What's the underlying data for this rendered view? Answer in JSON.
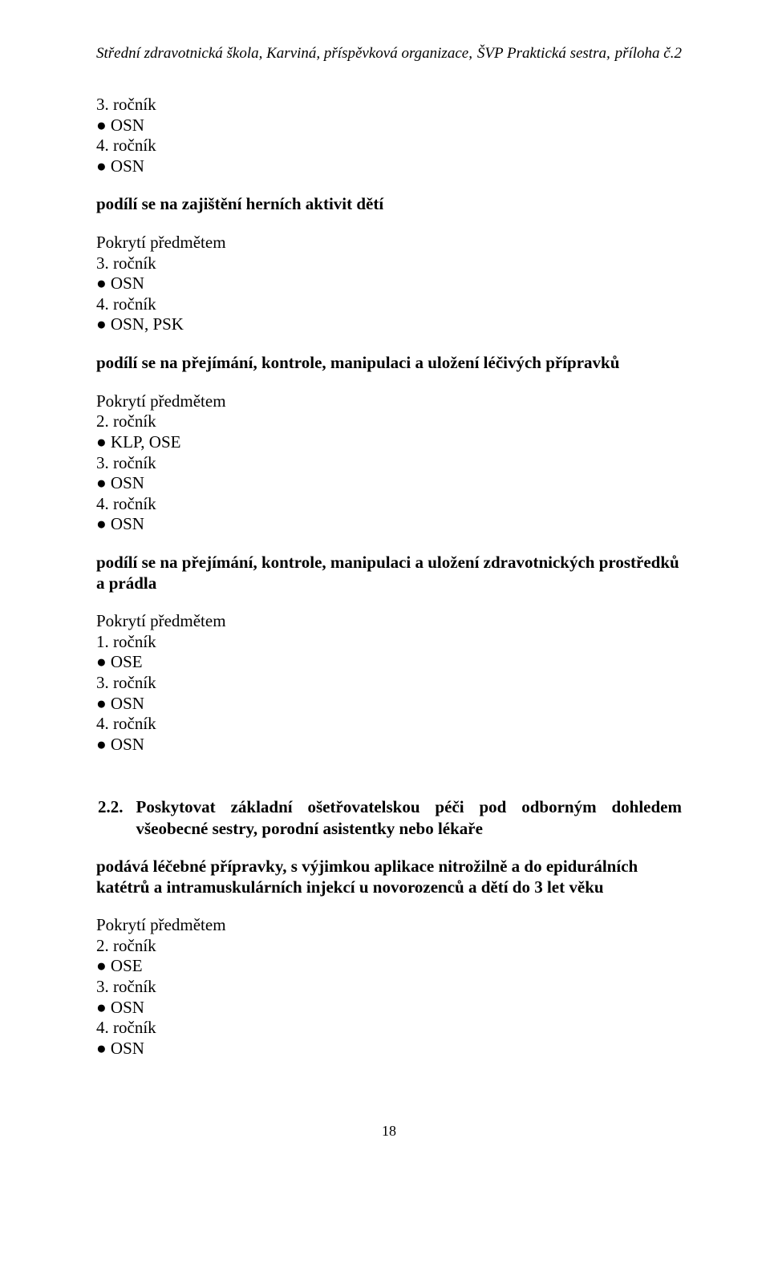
{
  "header": {
    "left": "Střední zdravotnická škola, Karviná, příspěvková organizace,",
    "center": "ŠVP Praktická sestra,",
    "right": "příloha č.2"
  },
  "b1": {
    "l1": "3. ročník",
    "l2": "● OSN",
    "l3": "4. ročník",
    "l4": "● OSN"
  },
  "b2": {
    "title": "podílí se na zajištění herních aktivit dětí",
    "l1": "Pokrytí předmětem",
    "l2": "3. ročník",
    "l3": "● OSN",
    "l4": "4. ročník",
    "l5": "● OSN, PSK"
  },
  "b3": {
    "title": "podílí se na přejímání, kontrole, manipulaci a uložení léčivých přípravků",
    "l1": "Pokrytí předmětem",
    "l2": "2. ročník",
    "l3": "● KLP, OSE",
    "l4": "3. ročník",
    "l5": "● OSN",
    "l6": "4. ročník",
    "l7": "● OSN"
  },
  "b4": {
    "title": "podílí se na přejímání, kontrole, manipulaci a uložení zdravotnických prostředků a prádla",
    "l1": "Pokrytí předmětem",
    "l2": "1. ročník",
    "l3": "● OSE",
    "l4": "3. ročník",
    "l5": "● OSN",
    "l6": "4. ročník",
    "l7": "● OSN"
  },
  "section": {
    "number": "2.2.",
    "text": "Poskytovat základní ošetřovatelskou péči pod odborným dohledem všeobecné sestry, porodní asistentky nebo lékaře"
  },
  "b5": {
    "title": "podává léčebné přípravky, s výjimkou aplikace nitrožilně a do epidurálních katétrů a intramuskulárních injekcí u novorozenců a dětí do 3 let věku",
    "l1": "Pokrytí předmětem",
    "l2": "2. ročník",
    "l3": "● OSE",
    "l4": "3. ročník",
    "l5": "● OSN",
    "l6": "4. ročník",
    "l7": "● OSN"
  },
  "pageNumber": "18"
}
